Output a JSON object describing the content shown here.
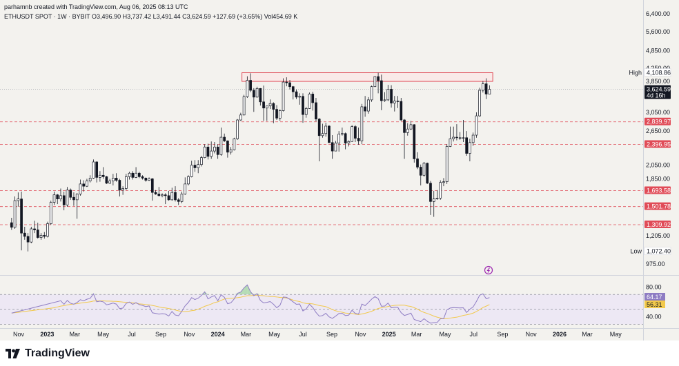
{
  "header": {
    "credit": "parhamnb created with TradingView.com, Aug 06, 2025 08:13 UTC",
    "symbol_line": "ETHUSDT SPOT · 1W · BYBIT",
    "ohlc": "O3,496.90 H3,737.42 L3,491.44 C3,624.59 +127.69 (+3.65%) Vol454.69 K"
  },
  "brand": {
    "name": "TradingView"
  },
  "colors": {
    "background": "#f3f2ee",
    "up": "#ffffff",
    "down": "#131722",
    "support": "#e04b57",
    "resistance_fill": "#fde3e3",
    "rsi_line": "#8e7cc3",
    "rsi_ma": "#f2c94c",
    "rsi_band": "#ede8f4",
    "overbought_fill": "#a5d6a7",
    "oversold_fill": "#ef9a9a",
    "axis_text": "#131722"
  },
  "chart_data": {
    "type": "candlestick",
    "symbol": "ETHUSDT",
    "timeframe": "1W",
    "exchange": "BYBIT",
    "y_scale": "log",
    "ylim": [
      890,
      6900
    ],
    "y_ticks": [
      "6,400.00",
      "5,600.00",
      "4,850.00",
      "4,250.00",
      "3,850.00",
      "3,050.00",
      "2,650.00",
      "2,050.00",
      "1,850.00",
      "1,205.00",
      "975.00"
    ],
    "x_ticks": [
      "Nov",
      "2023",
      "Mar",
      "May",
      "Jul",
      "Sep",
      "Nov",
      "2024",
      "Mar",
      "May",
      "Jul",
      "Sep",
      "Nov",
      "2025",
      "Mar",
      "May",
      "Jul",
      "Sep",
      "Nov",
      "2026",
      "Mar",
      "May"
    ],
    "x_ticks_bold": [
      "2023",
      "2024",
      "2025",
      "2026"
    ],
    "last_price": {
      "value": "3,624.59",
      "countdown": "4d 16h",
      "raw": 3624.59
    },
    "high_label": {
      "label": "High",
      "value": "4,108.86",
      "raw": 4108.86
    },
    "low_label": {
      "label": "Low",
      "value": "1,072.40",
      "raw": 1072.4
    },
    "resistance_zone": {
      "low": 3850,
      "high": 4108.86,
      "from": "2024-02-26",
      "to": "2025-08-11"
    },
    "support_levels": [
      {
        "value": "2,839.97",
        "raw": 2839.97
      },
      {
        "value": "2,396.95",
        "raw": 2396.95
      },
      {
        "value": "1,693.58",
        "raw": 1693.58
      },
      {
        "value": "1,501.78",
        "raw": 1501.78
      },
      {
        "value": "1,309.92",
        "raw": 1309.92
      }
    ],
    "candles": [
      {
        "d": "2022-10-17",
        "o": 1330,
        "h": 1380,
        "l": 1260,
        "c": 1285
      },
      {
        "d": "2022-10-24",
        "o": 1285,
        "h": 1620,
        "l": 1270,
        "c": 1570
      },
      {
        "d": "2022-10-31",
        "o": 1570,
        "h": 1670,
        "l": 1500,
        "c": 1590
      },
      {
        "d": "2022-11-07",
        "o": 1590,
        "h": 1680,
        "l": 1080,
        "c": 1230
      },
      {
        "d": "2022-11-14",
        "o": 1230,
        "h": 1290,
        "l": 1170,
        "c": 1200
      },
      {
        "d": "2022-11-21",
        "o": 1200,
        "h": 1230,
        "l": 1072,
        "c": 1150
      },
      {
        "d": "2022-11-28",
        "o": 1150,
        "h": 1290,
        "l": 1140,
        "c": 1270
      },
      {
        "d": "2022-12-05",
        "o": 1270,
        "h": 1350,
        "l": 1230,
        "c": 1260
      },
      {
        "d": "2022-12-12",
        "o": 1260,
        "h": 1330,
        "l": 1180,
        "c": 1190
      },
      {
        "d": "2022-12-19",
        "o": 1190,
        "h": 1230,
        "l": 1170,
        "c": 1210
      },
      {
        "d": "2022-12-26",
        "o": 1210,
        "h": 1240,
        "l": 1180,
        "c": 1200
      },
      {
        "d": "2023-01-02",
        "o": 1200,
        "h": 1340,
        "l": 1190,
        "c": 1320
      },
      {
        "d": "2023-01-09",
        "o": 1320,
        "h": 1570,
        "l": 1310,
        "c": 1550
      },
      {
        "d": "2023-01-16",
        "o": 1550,
        "h": 1680,
        "l": 1520,
        "c": 1640
      },
      {
        "d": "2023-01-23",
        "o": 1640,
        "h": 1650,
        "l": 1530,
        "c": 1590
      },
      {
        "d": "2023-01-30",
        "o": 1590,
        "h": 1720,
        "l": 1560,
        "c": 1630
      },
      {
        "d": "2023-02-06",
        "o": 1630,
        "h": 1680,
        "l": 1460,
        "c": 1520
      },
      {
        "d": "2023-02-13",
        "o": 1520,
        "h": 1740,
        "l": 1500,
        "c": 1700
      },
      {
        "d": "2023-02-20",
        "o": 1700,
        "h": 1720,
        "l": 1580,
        "c": 1610
      },
      {
        "d": "2023-02-27",
        "o": 1610,
        "h": 1670,
        "l": 1510,
        "c": 1580
      },
      {
        "d": "2023-03-06",
        "o": 1580,
        "h": 1660,
        "l": 1370,
        "c": 1650
      },
      {
        "d": "2023-03-13",
        "o": 1650,
        "h": 1840,
        "l": 1630,
        "c": 1780
      },
      {
        "d": "2023-03-20",
        "o": 1780,
        "h": 1830,
        "l": 1680,
        "c": 1750
      },
      {
        "d": "2023-03-27",
        "o": 1750,
        "h": 1850,
        "l": 1740,
        "c": 1820
      },
      {
        "d": "2023-04-03",
        "o": 1820,
        "h": 1900,
        "l": 1800,
        "c": 1860
      },
      {
        "d": "2023-04-10",
        "o": 1860,
        "h": 2140,
        "l": 1850,
        "c": 2100
      },
      {
        "d": "2023-04-17",
        "o": 2100,
        "h": 2110,
        "l": 1800,
        "c": 1870
      },
      {
        "d": "2023-04-24",
        "o": 1870,
        "h": 1960,
        "l": 1810,
        "c": 1900
      },
      {
        "d": "2023-05-01",
        "o": 1900,
        "h": 2020,
        "l": 1850,
        "c": 1880
      },
      {
        "d": "2023-05-08",
        "o": 1880,
        "h": 1890,
        "l": 1780,
        "c": 1790
      },
      {
        "d": "2023-05-15",
        "o": 1790,
        "h": 1850,
        "l": 1780,
        "c": 1820
      },
      {
        "d": "2023-05-22",
        "o": 1820,
        "h": 1920,
        "l": 1760,
        "c": 1860
      },
      {
        "d": "2023-05-29",
        "o": 1860,
        "h": 1930,
        "l": 1810,
        "c": 1830
      },
      {
        "d": "2023-06-05",
        "o": 1830,
        "h": 1850,
        "l": 1620,
        "c": 1700
      },
      {
        "d": "2023-06-12",
        "o": 1700,
        "h": 1750,
        "l": 1640,
        "c": 1720
      },
      {
        "d": "2023-06-19",
        "o": 1720,
        "h": 1920,
        "l": 1700,
        "c": 1880
      },
      {
        "d": "2023-06-26",
        "o": 1880,
        "h": 1950,
        "l": 1840,
        "c": 1930
      },
      {
        "d": "2023-07-03",
        "o": 1930,
        "h": 1960,
        "l": 1840,
        "c": 1870
      },
      {
        "d": "2023-07-10",
        "o": 1870,
        "h": 2020,
        "l": 1860,
        "c": 1930
      },
      {
        "d": "2023-07-17",
        "o": 1930,
        "h": 1950,
        "l": 1860,
        "c": 1880
      },
      {
        "d": "2023-07-24",
        "o": 1880,
        "h": 1900,
        "l": 1840,
        "c": 1860
      },
      {
        "d": "2023-07-31",
        "o": 1860,
        "h": 1870,
        "l": 1810,
        "c": 1830
      },
      {
        "d": "2023-08-07",
        "o": 1830,
        "h": 1870,
        "l": 1820,
        "c": 1850
      },
      {
        "d": "2023-08-14",
        "o": 1850,
        "h": 1860,
        "l": 1570,
        "c": 1670
      },
      {
        "d": "2023-08-21",
        "o": 1670,
        "h": 1700,
        "l": 1640,
        "c": 1650
      },
      {
        "d": "2023-08-28",
        "o": 1650,
        "h": 1740,
        "l": 1620,
        "c": 1630
      },
      {
        "d": "2023-09-04",
        "o": 1630,
        "h": 1660,
        "l": 1610,
        "c": 1640
      },
      {
        "d": "2023-09-11",
        "o": 1640,
        "h": 1660,
        "l": 1530,
        "c": 1630
      },
      {
        "d": "2023-09-18",
        "o": 1630,
        "h": 1690,
        "l": 1570,
        "c": 1580
      },
      {
        "d": "2023-09-25",
        "o": 1580,
        "h": 1730,
        "l": 1570,
        "c": 1670
      },
      {
        "d": "2023-10-02",
        "o": 1670,
        "h": 1750,
        "l": 1560,
        "c": 1580
      },
      {
        "d": "2023-10-09",
        "o": 1580,
        "h": 1600,
        "l": 1520,
        "c": 1560
      },
      {
        "d": "2023-10-16",
        "o": 1560,
        "h": 1680,
        "l": 1540,
        "c": 1650
      },
      {
        "d": "2023-10-23",
        "o": 1650,
        "h": 1870,
        "l": 1640,
        "c": 1780
      },
      {
        "d": "2023-10-30",
        "o": 1780,
        "h": 1900,
        "l": 1760,
        "c": 1880
      },
      {
        "d": "2023-11-06",
        "o": 1880,
        "h": 2120,
        "l": 1870,
        "c": 2050
      },
      {
        "d": "2023-11-13",
        "o": 2050,
        "h": 2130,
        "l": 1950,
        "c": 2010
      },
      {
        "d": "2023-11-20",
        "o": 2010,
        "h": 2130,
        "l": 1930,
        "c": 2060
      },
      {
        "d": "2023-11-27",
        "o": 2060,
        "h": 2200,
        "l": 2030,
        "c": 2170
      },
      {
        "d": "2023-12-04",
        "o": 2170,
        "h": 2400,
        "l": 2160,
        "c": 2350
      },
      {
        "d": "2023-12-11",
        "o": 2350,
        "h": 2410,
        "l": 2140,
        "c": 2190
      },
      {
        "d": "2023-12-18",
        "o": 2190,
        "h": 2450,
        "l": 2150,
        "c": 2280
      },
      {
        "d": "2023-12-25",
        "o": 2280,
        "h": 2440,
        "l": 2240,
        "c": 2350
      },
      {
        "d": "2024-01-01",
        "o": 2350,
        "h": 2400,
        "l": 2150,
        "c": 2220
      },
      {
        "d": "2024-01-08",
        "o": 2220,
        "h": 2720,
        "l": 2200,
        "c": 2530
      },
      {
        "d": "2024-01-15",
        "o": 2530,
        "h": 2600,
        "l": 2440,
        "c": 2460
      },
      {
        "d": "2024-01-22",
        "o": 2460,
        "h": 2470,
        "l": 2170,
        "c": 2260
      },
      {
        "d": "2024-01-29",
        "o": 2260,
        "h": 2350,
        "l": 2220,
        "c": 2300
      },
      {
        "d": "2024-02-05",
        "o": 2300,
        "h": 2520,
        "l": 2290,
        "c": 2500
      },
      {
        "d": "2024-02-12",
        "o": 2500,
        "h": 2900,
        "l": 2480,
        "c": 2880
      },
      {
        "d": "2024-02-19",
        "o": 2880,
        "h": 3040,
        "l": 2860,
        "c": 2990
      },
      {
        "d": "2024-02-26",
        "o": 2990,
        "h": 3480,
        "l": 2980,
        "c": 3430
      },
      {
        "d": "2024-03-04",
        "o": 3430,
        "h": 4000,
        "l": 3400,
        "c": 3880
      },
      {
        "d": "2024-03-11",
        "o": 3880,
        "h": 4090,
        "l": 3550,
        "c": 3600
      },
      {
        "d": "2024-03-18",
        "o": 3600,
        "h": 3660,
        "l": 3060,
        "c": 3420
      },
      {
        "d": "2024-03-25",
        "o": 3420,
        "h": 3700,
        "l": 3410,
        "c": 3650
      },
      {
        "d": "2024-04-01",
        "o": 3650,
        "h": 3660,
        "l": 3210,
        "c": 3300
      },
      {
        "d": "2024-04-08",
        "o": 3300,
        "h": 3730,
        "l": 2860,
        "c": 3150
      },
      {
        "d": "2024-04-15",
        "o": 3150,
        "h": 3200,
        "l": 2860,
        "c": 3200
      },
      {
        "d": "2024-04-22",
        "o": 3200,
        "h": 3360,
        "l": 3130,
        "c": 3260
      },
      {
        "d": "2024-04-29",
        "o": 3260,
        "h": 3290,
        "l": 2810,
        "c": 3120
      },
      {
        "d": "2024-05-06",
        "o": 3120,
        "h": 3220,
        "l": 2880,
        "c": 2920
      },
      {
        "d": "2024-05-13",
        "o": 2920,
        "h": 3120,
        "l": 2860,
        "c": 3090
      },
      {
        "d": "2024-05-20",
        "o": 3090,
        "h": 3940,
        "l": 3070,
        "c": 3830
      },
      {
        "d": "2024-05-27",
        "o": 3830,
        "h": 3970,
        "l": 3710,
        "c": 3810
      },
      {
        "d": "2024-06-03",
        "o": 3810,
        "h": 3890,
        "l": 3620,
        "c": 3700
      },
      {
        "d": "2024-06-10",
        "o": 3700,
        "h": 3720,
        "l": 3360,
        "c": 3560
      },
      {
        "d": "2024-06-17",
        "o": 3560,
        "h": 3620,
        "l": 3370,
        "c": 3420
      },
      {
        "d": "2024-06-24",
        "o": 3420,
        "h": 3520,
        "l": 3230,
        "c": 3440
      },
      {
        "d": "2024-07-01",
        "o": 3440,
        "h": 3520,
        "l": 2820,
        "c": 3000
      },
      {
        "d": "2024-07-08",
        "o": 3000,
        "h": 3180,
        "l": 2930,
        "c": 3140
      },
      {
        "d": "2024-07-15",
        "o": 3140,
        "h": 3540,
        "l": 3130,
        "c": 3500
      },
      {
        "d": "2024-07-22",
        "o": 3500,
        "h": 3560,
        "l": 3090,
        "c": 3280
      },
      {
        "d": "2024-07-29",
        "o": 3280,
        "h": 3400,
        "l": 2850,
        "c": 2900
      },
      {
        "d": "2024-08-05",
        "o": 2900,
        "h": 2920,
        "l": 2110,
        "c": 2560
      },
      {
        "d": "2024-08-12",
        "o": 2560,
        "h": 2800,
        "l": 2520,
        "c": 2600
      },
      {
        "d": "2024-08-19",
        "o": 2600,
        "h": 2820,
        "l": 2540,
        "c": 2750
      },
      {
        "d": "2024-08-26",
        "o": 2750,
        "h": 2770,
        "l": 2420,
        "c": 2430
      },
      {
        "d": "2024-09-02",
        "o": 2430,
        "h": 2570,
        "l": 2150,
        "c": 2280
      },
      {
        "d": "2024-09-09",
        "o": 2280,
        "h": 2460,
        "l": 2280,
        "c": 2420
      },
      {
        "d": "2024-09-16",
        "o": 2420,
        "h": 2650,
        "l": 2270,
        "c": 2590
      },
      {
        "d": "2024-09-23",
        "o": 2590,
        "h": 2720,
        "l": 2560,
        "c": 2600
      },
      {
        "d": "2024-09-30",
        "o": 2600,
        "h": 2620,
        "l": 2310,
        "c": 2420
      },
      {
        "d": "2024-10-07",
        "o": 2420,
        "h": 2470,
        "l": 2360,
        "c": 2450
      },
      {
        "d": "2024-10-14",
        "o": 2450,
        "h": 2770,
        "l": 2450,
        "c": 2740
      },
      {
        "d": "2024-10-21",
        "o": 2740,
        "h": 2770,
        "l": 2440,
        "c": 2510
      },
      {
        "d": "2024-10-28",
        "o": 2510,
        "h": 2720,
        "l": 2390,
        "c": 2460
      },
      {
        "d": "2024-11-04",
        "o": 2460,
        "h": 3250,
        "l": 2400,
        "c": 3180
      },
      {
        "d": "2024-11-11",
        "o": 3180,
        "h": 3450,
        "l": 2950,
        "c": 3080
      },
      {
        "d": "2024-11-18",
        "o": 3080,
        "h": 3420,
        "l": 3020,
        "c": 3350
      },
      {
        "d": "2024-11-25",
        "o": 3350,
        "h": 3730,
        "l": 3300,
        "c": 3700
      },
      {
        "d": "2024-12-02",
        "o": 3700,
        "h": 4000,
        "l": 3690,
        "c": 3990
      },
      {
        "d": "2024-12-09",
        "o": 3990,
        "h": 4108.86,
        "l": 3520,
        "c": 3870
      },
      {
        "d": "2024-12-16",
        "o": 3870,
        "h": 4050,
        "l": 3100,
        "c": 3330
      },
      {
        "d": "2024-12-23",
        "o": 3330,
        "h": 3550,
        "l": 3300,
        "c": 3350
      },
      {
        "d": "2024-12-30",
        "o": 3350,
        "h": 3750,
        "l": 3320,
        "c": 3630
      },
      {
        "d": "2025-01-06",
        "o": 3630,
        "h": 3740,
        "l": 3160,
        "c": 3270
      },
      {
        "d": "2025-01-13",
        "o": 3270,
        "h": 3450,
        "l": 3070,
        "c": 3320
      },
      {
        "d": "2025-01-20",
        "o": 3320,
        "h": 3450,
        "l": 3150,
        "c": 3310
      },
      {
        "d": "2025-01-27",
        "o": 3310,
        "h": 3400,
        "l": 2860,
        "c": 2880
      },
      {
        "d": "2025-02-03",
        "o": 2880,
        "h": 2900,
        "l": 2150,
        "c": 2620
      },
      {
        "d": "2025-02-10",
        "o": 2620,
        "h": 2810,
        "l": 2560,
        "c": 2690
      },
      {
        "d": "2025-02-17",
        "o": 2690,
        "h": 2860,
        "l": 2670,
        "c": 2780
      },
      {
        "d": "2025-02-24",
        "o": 2780,
        "h": 2790,
        "l": 2090,
        "c": 2150
      },
      {
        "d": "2025-03-03",
        "o": 2150,
        "h": 2260,
        "l": 1990,
        "c": 2020
      },
      {
        "d": "2025-03-10",
        "o": 2020,
        "h": 2060,
        "l": 1760,
        "c": 1900
      },
      {
        "d": "2025-03-17",
        "o": 1900,
        "h": 2100,
        "l": 1880,
        "c": 2080
      },
      {
        "d": "2025-03-24",
        "o": 2080,
        "h": 2090,
        "l": 1780,
        "c": 1790
      },
      {
        "d": "2025-03-31",
        "o": 1790,
        "h": 1820,
        "l": 1410,
        "c": 1560
      },
      {
        "d": "2025-04-07",
        "o": 1560,
        "h": 1690,
        "l": 1390,
        "c": 1590
      },
      {
        "d": "2025-04-14",
        "o": 1590,
        "h": 1700,
        "l": 1580,
        "c": 1600
      },
      {
        "d": "2025-04-21",
        "o": 1600,
        "h": 1830,
        "l": 1580,
        "c": 1800
      },
      {
        "d": "2025-04-28",
        "o": 1800,
        "h": 1860,
        "l": 1750,
        "c": 1810
      },
      {
        "d": "2025-05-05",
        "o": 1810,
        "h": 2400,
        "l": 1780,
        "c": 2360
      },
      {
        "d": "2025-05-12",
        "o": 2360,
        "h": 2740,
        "l": 2350,
        "c": 2500
      },
      {
        "d": "2025-05-19",
        "o": 2500,
        "h": 2740,
        "l": 2450,
        "c": 2530
      },
      {
        "d": "2025-05-26",
        "o": 2530,
        "h": 2790,
        "l": 2470,
        "c": 2520
      },
      {
        "d": "2025-06-02",
        "o": 2520,
        "h": 2630,
        "l": 2480,
        "c": 2510
      },
      {
        "d": "2025-06-09",
        "o": 2510,
        "h": 2880,
        "l": 2440,
        "c": 2520
      },
      {
        "d": "2025-06-16",
        "o": 2520,
        "h": 2650,
        "l": 2200,
        "c": 2240
      },
      {
        "d": "2025-06-23",
        "o": 2240,
        "h": 2500,
        "l": 2110,
        "c": 2430
      },
      {
        "d": "2025-06-30",
        "o": 2430,
        "h": 2620,
        "l": 2370,
        "c": 2570
      },
      {
        "d": "2025-07-07",
        "o": 2570,
        "h": 3050,
        "l": 2520,
        "c": 2970
      },
      {
        "d": "2025-07-14",
        "o": 2970,
        "h": 3670,
        "l": 2950,
        "c": 3600
      },
      {
        "d": "2025-07-21",
        "o": 3600,
        "h": 3860,
        "l": 3540,
        "c": 3780
      },
      {
        "d": "2025-07-28",
        "o": 3780,
        "h": 3940,
        "l": 3370,
        "c": 3500
      },
      {
        "d": "2025-08-04",
        "o": 3496.9,
        "h": 3737.42,
        "l": 3491.44,
        "c": 3624.59
      }
    ],
    "rsi": {
      "value": "64.17",
      "ma_value": "56.31",
      "ticks": [
        "80.00",
        "40.00"
      ],
      "ylim": [
        25,
        95
      ],
      "upper": 70,
      "middle": 50,
      "lower": 30
    }
  }
}
